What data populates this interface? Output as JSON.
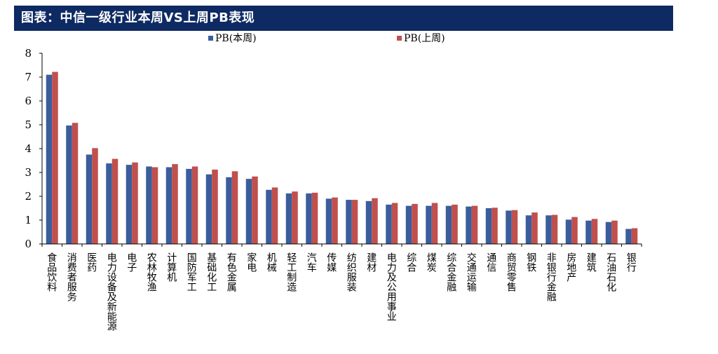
{
  "header": {
    "title": "图表：中信一级行业本周VS上周PB表现"
  },
  "chart_data": {
    "type": "bar",
    "title": "图表：中信一级行业本周VS上周PB表现",
    "xlabel": "",
    "ylabel": "",
    "ylim": [
      0,
      8
    ],
    "yticks": [
      0,
      1,
      2,
      3,
      4,
      5,
      6,
      7,
      8
    ],
    "legend_position": "top",
    "categories": [
      "食品饮料",
      "消费者服务",
      "医药",
      "电力设备及新能源",
      "电子",
      "农林牧渔",
      "计算机",
      "国防军工",
      "基础化工",
      "有色金属",
      "家电",
      "机械",
      "轻工制造",
      "汽车",
      "传媒",
      "纺织服装",
      "建材",
      "电力及公用事业",
      "综合",
      "煤炭",
      "综合金融",
      "交通运输",
      "通信",
      "商贸零售",
      "钢铁",
      "非银行金融",
      "房地产",
      "建筑",
      "石油石化",
      "银行"
    ],
    "series": [
      {
        "name": "PB(本周)",
        "color": "#3b5d9c",
        "values": [
          7.1,
          4.97,
          3.75,
          3.38,
          3.32,
          3.25,
          3.22,
          3.15,
          2.92,
          2.8,
          2.73,
          2.27,
          2.12,
          2.12,
          1.9,
          1.85,
          1.8,
          1.65,
          1.6,
          1.6,
          1.6,
          1.57,
          1.5,
          1.4,
          1.2,
          1.2,
          1.02,
          0.98,
          0.92,
          0.63
        ]
      },
      {
        "name": "PB(上周)",
        "color": "#c0504d",
        "values": [
          7.22,
          5.08,
          4.02,
          3.57,
          3.42,
          3.22,
          3.35,
          3.25,
          3.12,
          3.05,
          2.83,
          2.37,
          2.2,
          2.15,
          1.95,
          1.85,
          1.92,
          1.72,
          1.68,
          1.72,
          1.65,
          1.6,
          1.52,
          1.42,
          1.32,
          1.22,
          1.13,
          1.05,
          0.98,
          0.66
        ]
      }
    ]
  }
}
